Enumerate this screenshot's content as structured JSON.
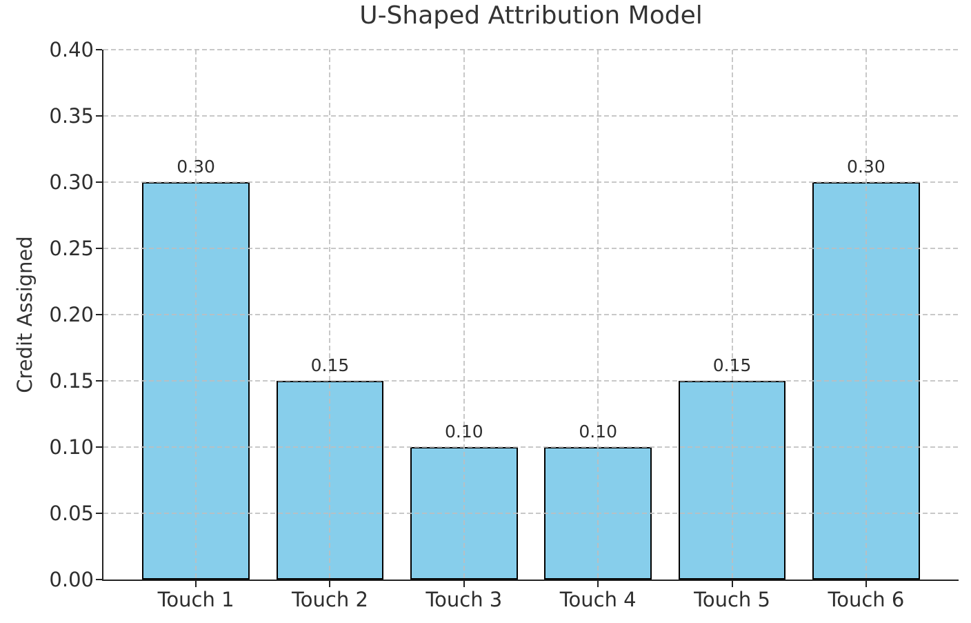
{
  "chart_data": {
    "type": "bar",
    "title": "U-Shaped Attribution Model",
    "xlabel": "",
    "ylabel": "Credit Assigned",
    "categories": [
      "Touch 1",
      "Touch 2",
      "Touch 3",
      "Touch 4",
      "Touch 5",
      "Touch 6"
    ],
    "values": [
      0.3,
      0.15,
      0.1,
      0.1,
      0.15,
      0.3
    ],
    "value_labels": [
      "0.30",
      "0.15",
      "0.10",
      "0.10",
      "0.15",
      "0.30"
    ],
    "ylim": [
      0.0,
      0.4
    ],
    "yticks": [
      0.0,
      0.05,
      0.1,
      0.15,
      0.2,
      0.25,
      0.3,
      0.35,
      0.4
    ],
    "ytick_labels": [
      "0.00",
      "0.05",
      "0.10",
      "0.15",
      "0.20",
      "0.25",
      "0.30",
      "0.35",
      "0.40"
    ],
    "grid": true,
    "grid_style": "dashed",
    "legend": "none",
    "colors": {
      "bar_fill": "#87CEEB",
      "bar_edge": "#000000",
      "grid": "#c9c9c9",
      "spine": "#222222",
      "text": "#333333"
    }
  }
}
